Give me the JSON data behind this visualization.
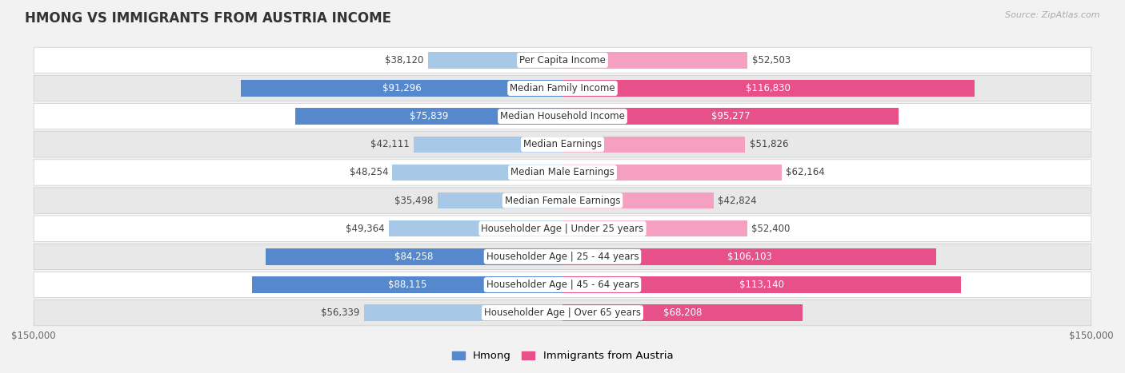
{
  "title": "HMONG VS IMMIGRANTS FROM AUSTRIA INCOME",
  "source": "Source: ZipAtlas.com",
  "categories": [
    "Per Capita Income",
    "Median Family Income",
    "Median Household Income",
    "Median Earnings",
    "Median Male Earnings",
    "Median Female Earnings",
    "Householder Age | Under 25 years",
    "Householder Age | 25 - 44 years",
    "Householder Age | 45 - 64 years",
    "Householder Age | Over 65 years"
  ],
  "hmong_values": [
    38120,
    91296,
    75839,
    42111,
    48254,
    35498,
    49364,
    84258,
    88115,
    56339
  ],
  "austria_values": [
    52503,
    116830,
    95277,
    51826,
    62164,
    42824,
    52400,
    106103,
    113140,
    68208
  ],
  "hmong_labels": [
    "$38,120",
    "$91,296",
    "$75,839",
    "$42,111",
    "$48,254",
    "$35,498",
    "$49,364",
    "$84,258",
    "$88,115",
    "$56,339"
  ],
  "austria_labels": [
    "$52,503",
    "$116,830",
    "$95,277",
    "$51,826",
    "$62,164",
    "$42,824",
    "$52,400",
    "$106,103",
    "$113,140",
    "$68,208"
  ],
  "max_value": 150000,
  "hmong_color_light": "#a8c8e8",
  "hmong_color_dark": "#5588cc",
  "austria_color_light": "#f5a0c0",
  "austria_color_dark": "#e8508a",
  "bg_color": "#f2f2f2",
  "row_bg_even": "#ffffff",
  "row_bg_odd": "#e8e8e8",
  "label_fontsize": 8.5,
  "title_fontsize": 12,
  "legend_fontsize": 9.5,
  "axis_label": "$150,000",
  "hmong_legend": "Hmong",
  "austria_legend": "Immigrants from Austria",
  "hmong_dark_threshold": 65000,
  "austria_dark_threshold": 65000
}
